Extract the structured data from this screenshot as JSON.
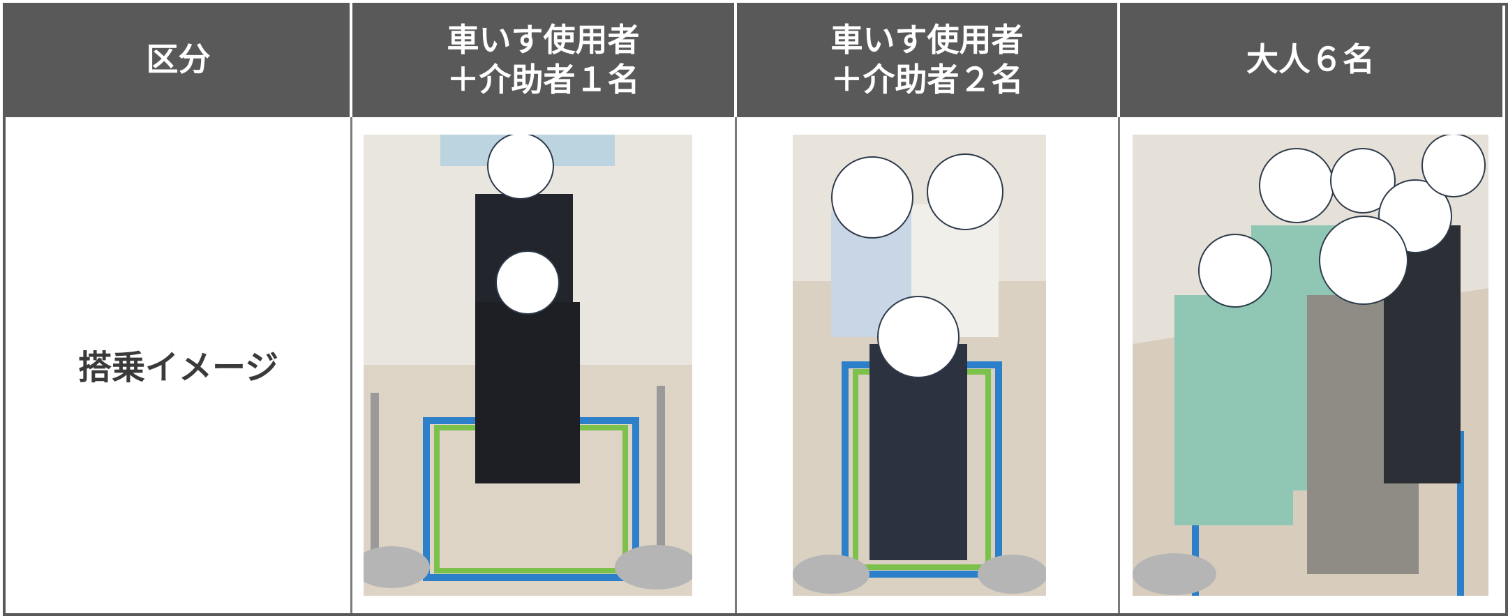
{
  "table": {
    "header": [
      [
        "区分"
      ],
      [
        "車いす使用者",
        "＋介助者１名"
      ],
      [
        "車いす使用者",
        "＋介助者２名"
      ],
      [
        "大人６名"
      ]
    ],
    "rows": [
      [
        "搭乗イメージ"
      ]
    ]
  }
}
